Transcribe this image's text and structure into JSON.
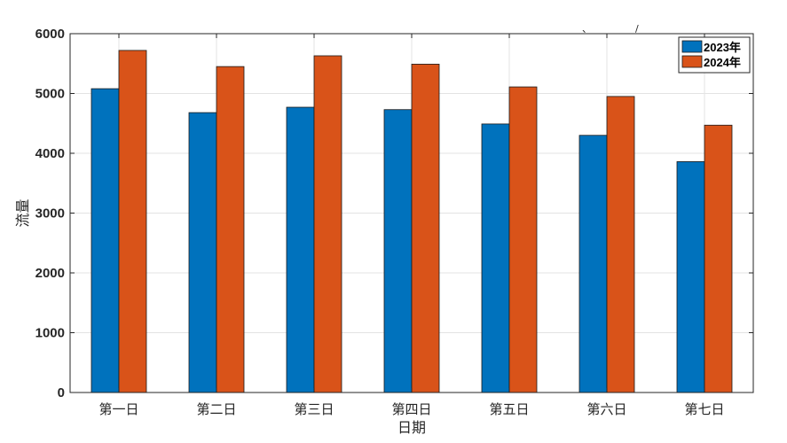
{
  "chart_data": {
    "type": "bar",
    "categories": [
      "第一日",
      "第二日",
      "第三日",
      "第四日",
      "第五日",
      "第六日",
      "第七日"
    ],
    "series": [
      {
        "name": "2023年",
        "color": "#0072BD",
        "values": [
          5080,
          4680,
          4770,
          4730,
          4490,
          4300,
          3860
        ]
      },
      {
        "name": "2024年",
        "color": "#D95319",
        "values": [
          5720,
          5450,
          5630,
          5490,
          5110,
          4950,
          4470
        ]
      }
    ],
    "xlabel": "日期",
    "ylabel": "流量",
    "ylim": [
      0,
      6000
    ],
    "yticks": [
      0,
      1000,
      2000,
      3000,
      4000,
      5000,
      6000
    ],
    "grid": true,
    "legend_position": "top-right",
    "stray_marks": [
      "、",
      "/"
    ]
  }
}
